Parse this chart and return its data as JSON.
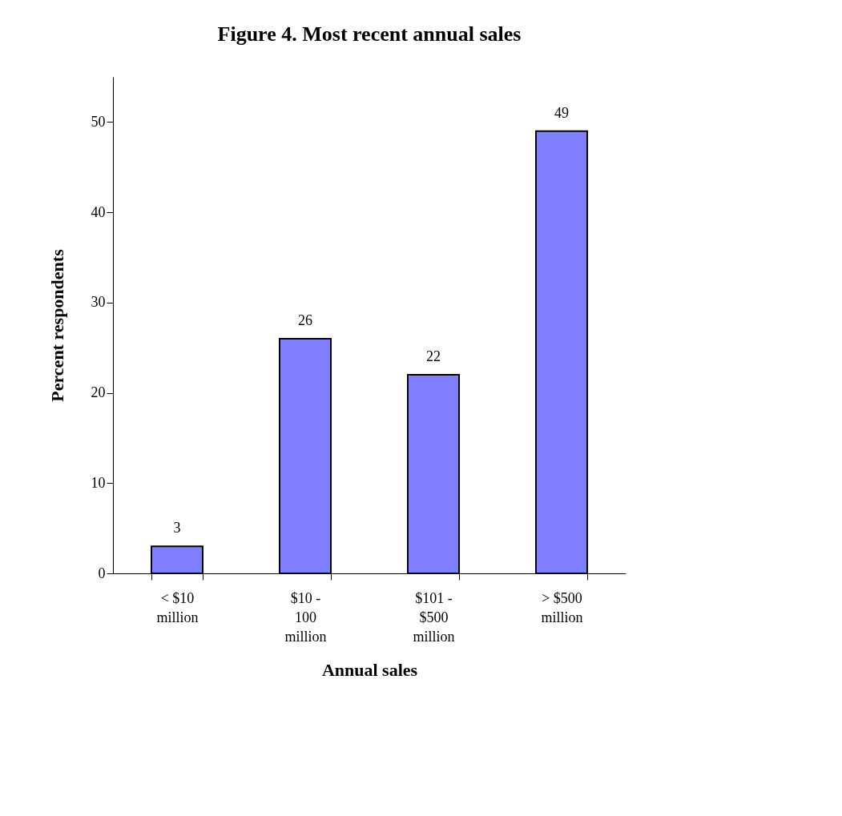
{
  "chart_data": {
    "type": "bar",
    "title": "Figure 4.  Most recent annual sales",
    "xlabel": "Annual sales",
    "ylabel": "Percent respondents",
    "categories": [
      "< $10 million",
      "$10 - 100 million",
      "$101 - $500 million",
      "> $500 million"
    ],
    "values": [
      3,
      26,
      22,
      49
    ],
    "color": "#8080ff",
    "ylim": [
      0,
      55
    ],
    "yticks": [
      0,
      10,
      20,
      30,
      40,
      50
    ],
    "grid": false,
    "data_labels": true
  }
}
